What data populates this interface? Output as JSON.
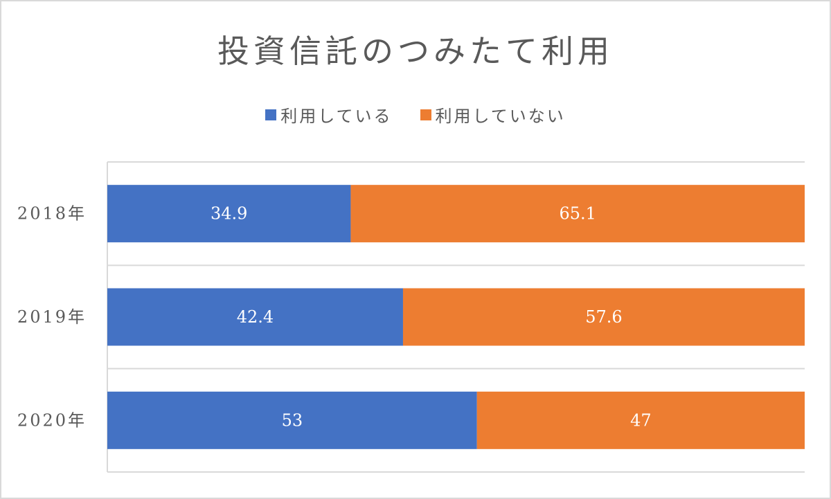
{
  "chart_data": {
    "type": "bar",
    "orientation": "horizontal",
    "stacked": true,
    "title": "投資信託のつみたて利用",
    "categories": [
      "2018年",
      "2019年",
      "2020年"
    ],
    "series": [
      {
        "name": "利用している",
        "color": "#4472c4",
        "values": [
          34.9,
          42.4,
          53
        ]
      },
      {
        "name": "利用していない",
        "color": "#ed7d31",
        "values": [
          65.1,
          57.6,
          47
        ]
      }
    ],
    "data_labels": [
      [
        "34.9",
        "42.4",
        "53"
      ],
      [
        "65.1",
        "57.6",
        "47"
      ]
    ],
    "xlim": [
      0,
      100
    ],
    "legend_position": "top",
    "grid": true
  }
}
